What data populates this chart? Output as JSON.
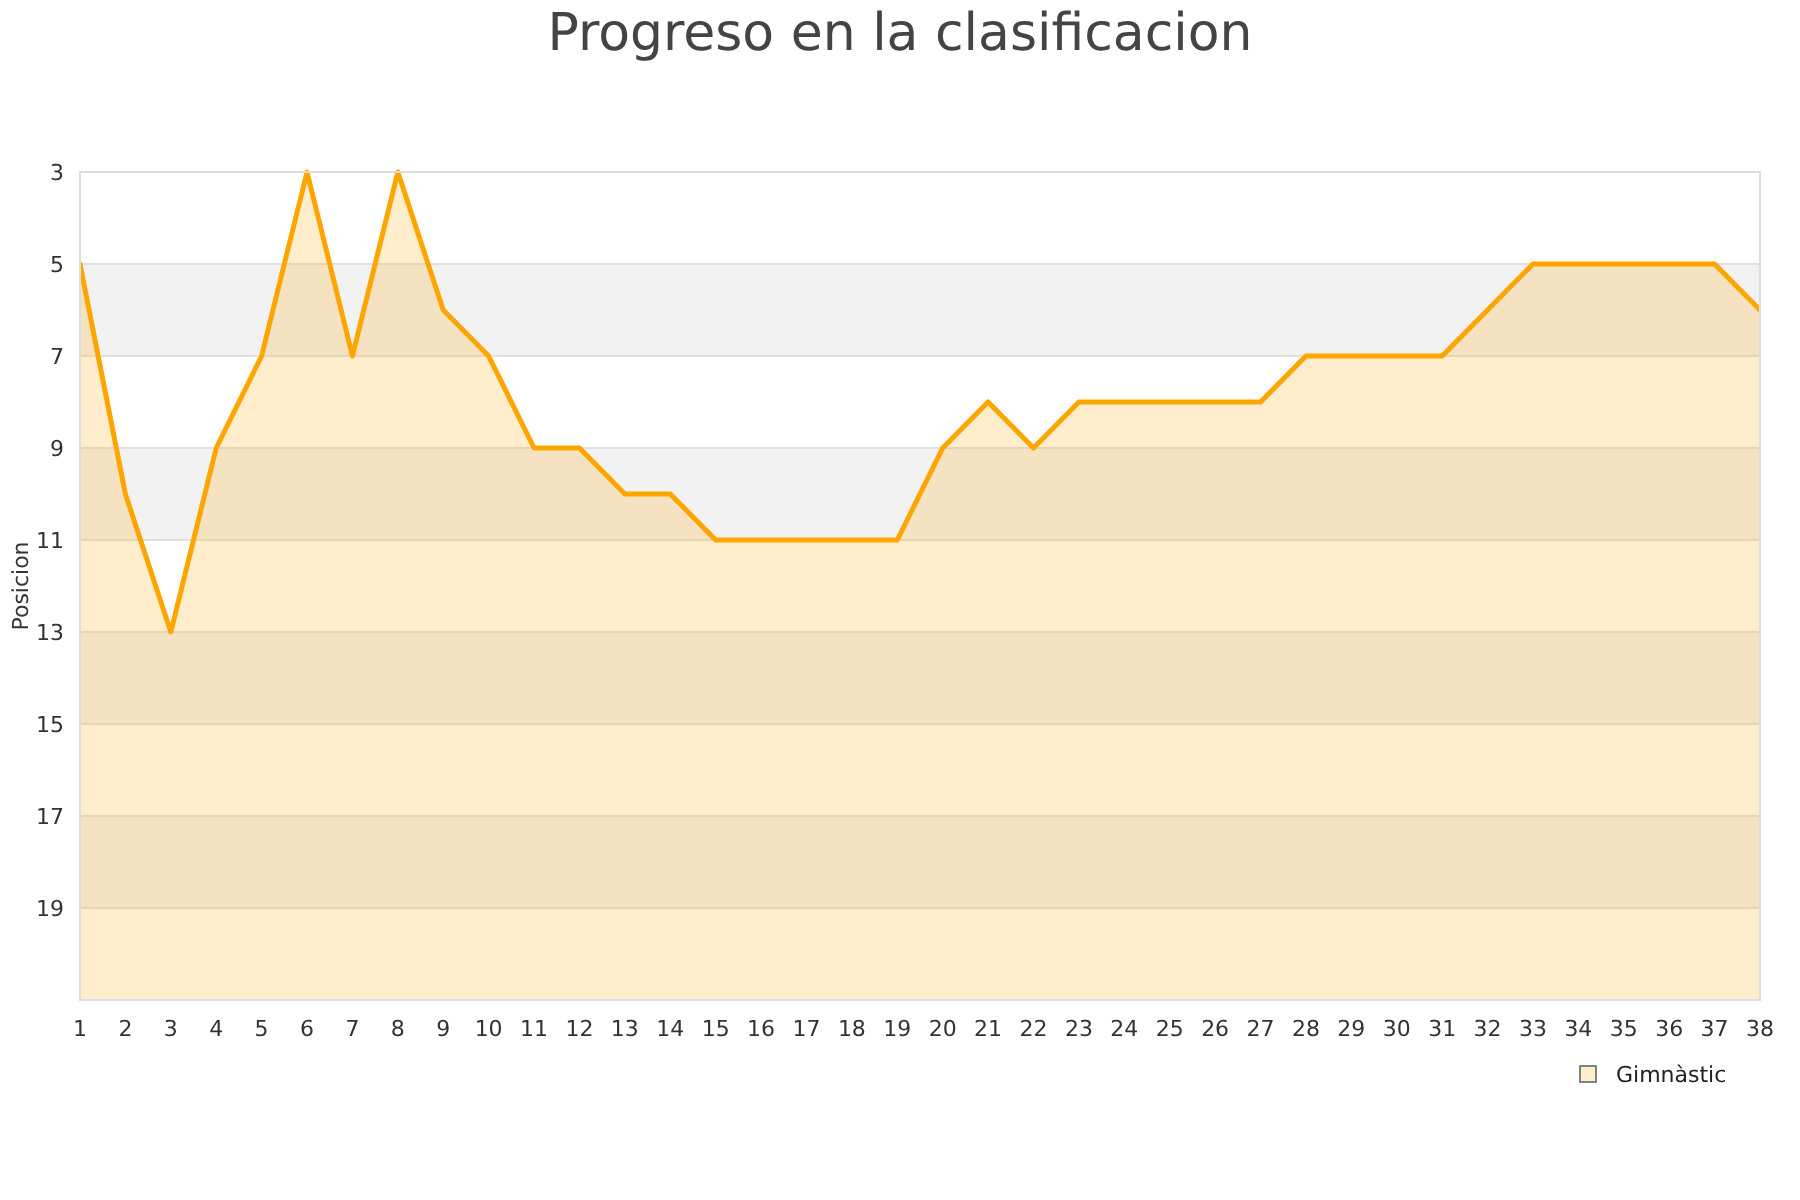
{
  "chart_data": {
    "type": "area",
    "title": "Progreso en la clasificacion",
    "ylabel": "Posicion",
    "x": [
      1,
      2,
      3,
      4,
      5,
      6,
      7,
      8,
      9,
      10,
      11,
      12,
      13,
      14,
      15,
      16,
      17,
      18,
      19,
      20,
      21,
      22,
      23,
      24,
      25,
      26,
      27,
      28,
      29,
      30,
      31,
      32,
      33,
      34,
      35,
      36,
      37,
      38
    ],
    "series": [
      {
        "name": "Gimnàstic",
        "color": "#ffa500",
        "values": [
          5,
          10,
          13,
          9,
          7,
          3,
          7,
          3,
          6,
          7,
          9,
          9,
          10,
          10,
          11,
          11,
          11,
          11,
          11,
          9,
          8,
          9,
          8,
          8,
          8,
          8,
          8,
          7,
          7,
          7,
          7,
          6,
          5,
          5,
          5,
          5,
          5,
          6
        ]
      }
    ],
    "xlim": [
      1,
      38
    ],
    "xticks": [
      1,
      2,
      3,
      4,
      5,
      6,
      7,
      8,
      9,
      10,
      11,
      12,
      13,
      14,
      15,
      16,
      17,
      18,
      19,
      20,
      21,
      22,
      23,
      24,
      25,
      26,
      27,
      28,
      29,
      30,
      31,
      32,
      33,
      34,
      35,
      36,
      37,
      38
    ],
    "ylim": [
      21,
      3
    ],
    "yticks": [
      3,
      5,
      7,
      9,
      11,
      13,
      15,
      17,
      19
    ],
    "grid": true,
    "legend": "bottom right"
  }
}
